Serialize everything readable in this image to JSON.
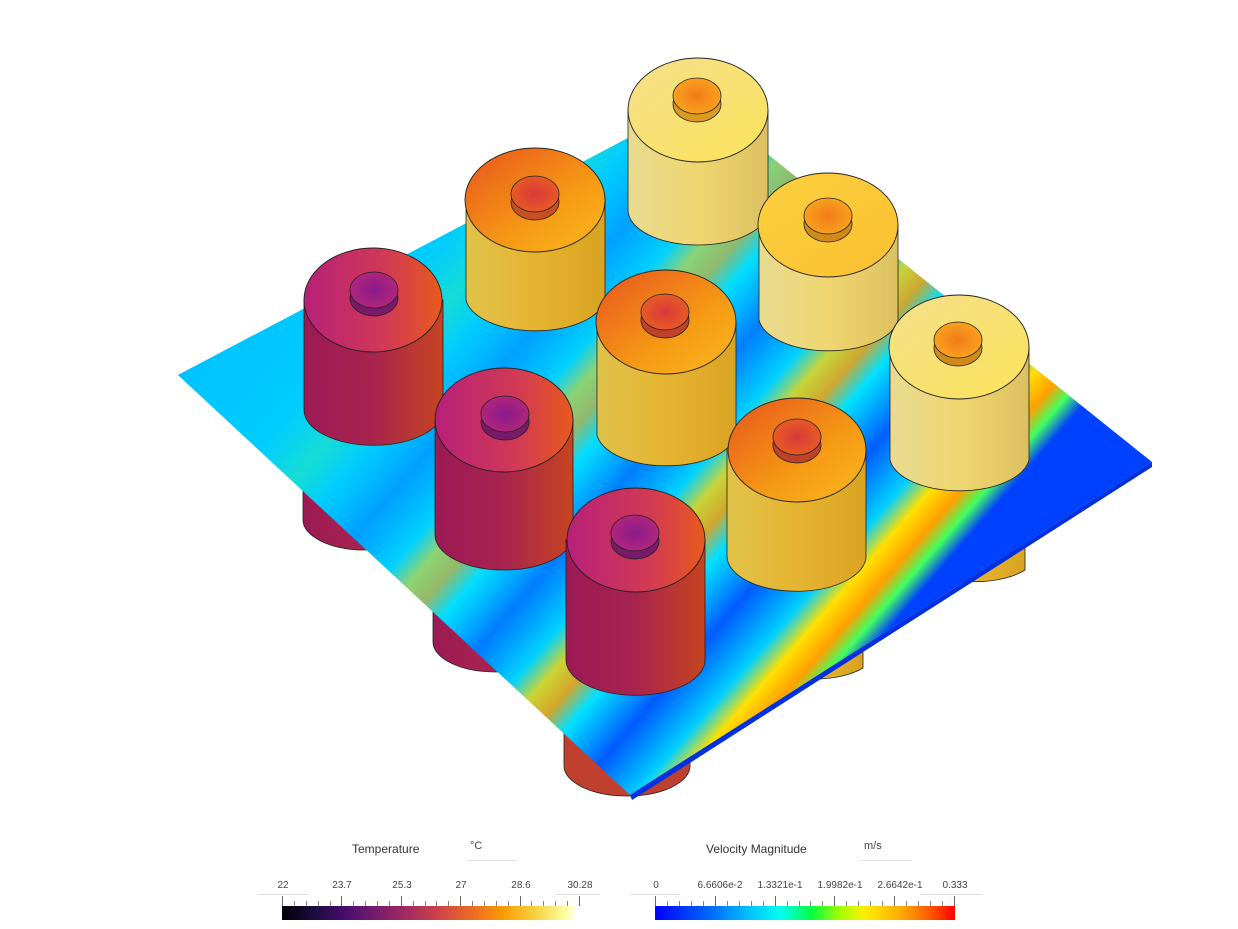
{
  "viewport": {
    "scene": "battery-cell-array-cooling-plate",
    "cell_rows": 3,
    "cell_cols": 3
  },
  "legends": {
    "temperature": {
      "title": "Temperature",
      "unit": "°C",
      "ticks": [
        "22",
        "23.7",
        "25.3",
        "27",
        "28.6",
        "30.28"
      ],
      "min": 22,
      "max": 30.28,
      "colormap": "inferno"
    },
    "velocity": {
      "title": "Velocity Magnitude",
      "unit": "m/s",
      "ticks": [
        "0",
        "6.6606e-2",
        "1.3321e-1",
        "1.9982e-1",
        "2.6642e-1",
        "0.333"
      ],
      "min": 0,
      "max": 0.333,
      "colormap": "rainbow"
    }
  },
  "colors": {
    "plate_low": "#0050ff",
    "plate_mid": "#00e5ff",
    "plate_high": "#ffb000",
    "cell_hot": "#e8d070",
    "cell_warm": "#f0a020",
    "cell_cool": "#c02060"
  }
}
